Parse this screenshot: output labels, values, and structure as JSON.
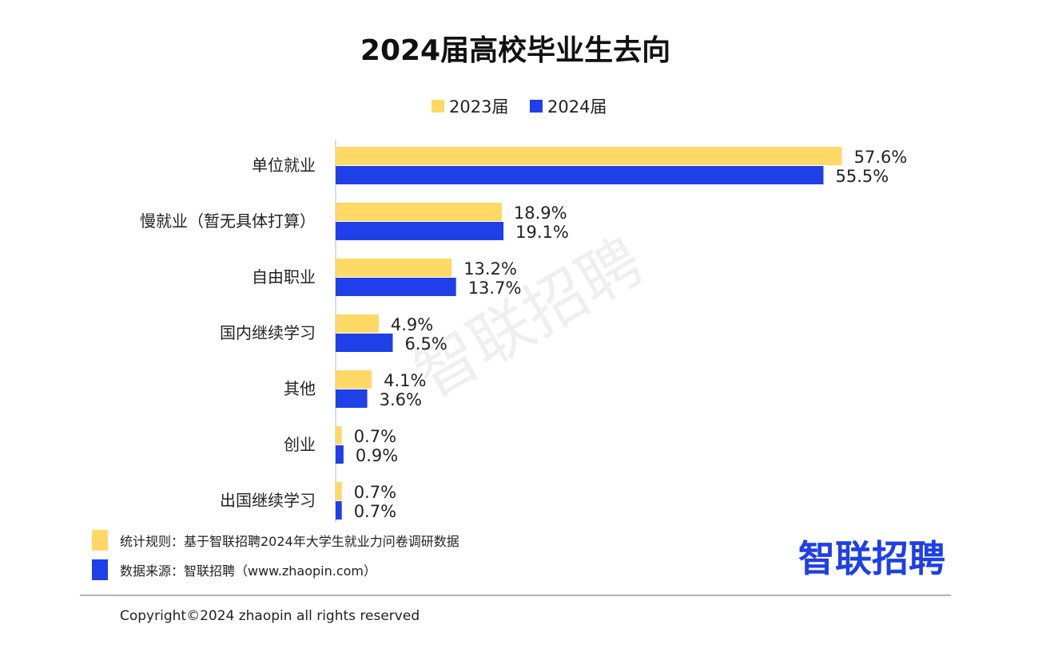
{
  "chart_data": {
    "type": "bar",
    "orientation": "horizontal",
    "title": "2024届高校毕业生去向",
    "categories": [
      "单位就业",
      "慢就业（暂无具体打算）",
      "自由职业",
      "国内继续学习",
      "其他",
      "创业",
      "出国继续学习"
    ],
    "series": [
      {
        "name": "2023届",
        "color": "#FFD966",
        "values": [
          57.6,
          18.9,
          13.2,
          4.9,
          4.1,
          0.7,
          0.7
        ],
        "labels": [
          "57.6%",
          "18.9%",
          "13.2%",
          "4.9%",
          "4.1%",
          "0.7%",
          "0.7%"
        ]
      },
      {
        "name": "2024届",
        "color": "#1F3FE8",
        "values": [
          55.5,
          19.1,
          13.7,
          6.5,
          3.6,
          0.9,
          0.7
        ],
        "labels": [
          "55.5%",
          "19.1%",
          "13.7%",
          "6.5%",
          "3.6%",
          "0.9%",
          "0.7%"
        ]
      }
    ],
    "xlim": [
      0,
      60
    ],
    "grid": false,
    "legend_position": "top-center"
  },
  "notes": {
    "rule": "统计规则：基于智联招聘2024年大学生就业力问卷调研数据",
    "source": "数据来源：智联招聘（www.zhaopin.com）"
  },
  "brand": {
    "name": "智联招聘",
    "color": "#1F3FE8",
    "watermark": "智联招聘"
  },
  "footer": {
    "copyright": "Copyright©2024 zhaopin all rights reserved"
  }
}
